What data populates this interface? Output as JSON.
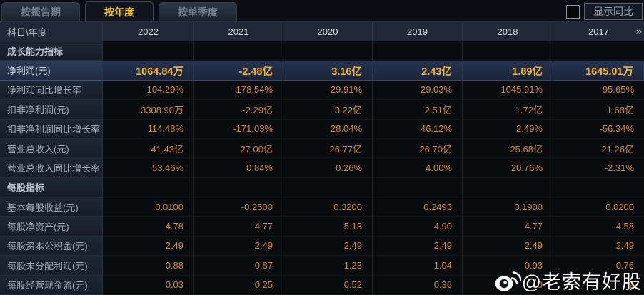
{
  "tabs": [
    {
      "label": "按报告期",
      "active": false
    },
    {
      "label": "按年度",
      "active": true
    },
    {
      "label": "按单季度",
      "active": false
    }
  ],
  "controls": {
    "show_yoy_label": "显示同比"
  },
  "table": {
    "corner_header": "科目\\年度",
    "year_columns": [
      "2022",
      "2021",
      "2020",
      "2019",
      "2018",
      "2017"
    ],
    "more_years_icon": "»",
    "rows": [
      {
        "label": "成长能力指标",
        "type": "section",
        "values": [
          "",
          "",
          "",
          "",
          "",
          ""
        ]
      },
      {
        "label": "净利润(元)",
        "type": "highlight",
        "values": [
          "1064.84万",
          "-2.48亿",
          "3.16亿",
          "2.43亿",
          "1.89亿",
          "1645.01万"
        ]
      },
      {
        "label": "净利润同比增长率",
        "type": "data",
        "values": [
          "104.29%",
          "-178.54%",
          "29.91%",
          "29.03%",
          "1045.91%",
          "-95.65%"
        ]
      },
      {
        "label": "扣非净利润(元)",
        "type": "data",
        "values": [
          "3308.90万",
          "-2.29亿",
          "3.22亿",
          "2.51亿",
          "1.72亿",
          "1.68亿"
        ]
      },
      {
        "label": "扣非净利润同比增长率",
        "type": "data",
        "values": [
          "114.48%",
          "-171.03%",
          "28.04%",
          "46.12%",
          "2.49%",
          "-56.34%"
        ]
      },
      {
        "label": "营业总收入(元)",
        "type": "data",
        "values": [
          "41.43亿",
          "27.00亿",
          "26.77亿",
          "26.70亿",
          "25.68亿",
          "21.26亿"
        ]
      },
      {
        "label": "营业总收入同比增长率",
        "type": "data",
        "values": [
          "53.46%",
          "0.84%",
          "0.26%",
          "4.00%",
          "20.76%",
          "-2.31%"
        ]
      },
      {
        "label": "每股指标",
        "type": "section",
        "values": [
          "",
          "",
          "",
          "",
          "",
          ""
        ]
      },
      {
        "label": "基本每股收益(元)",
        "type": "data",
        "values": [
          "0.0100",
          "-0.2500",
          "0.3200",
          "0.2493",
          "0.1900",
          "0.0200"
        ]
      },
      {
        "label": "每股净资产(元)",
        "type": "data",
        "values": [
          "4.78",
          "4.77",
          "5.13",
          "4.90",
          "4.77",
          "4.58"
        ]
      },
      {
        "label": "每股资本公积金(元)",
        "type": "data",
        "values": [
          "2.49",
          "2.49",
          "2.49",
          "2.49",
          "2.49",
          "2.49"
        ]
      },
      {
        "label": "每股未分配利润(元)",
        "type": "data",
        "values": [
          "0.88",
          "0.87",
          "1.23",
          "1.04",
          "0.93",
          "0.76"
        ]
      },
      {
        "label": "每股经营现金流(元)",
        "type": "data",
        "values": [
          "0.03",
          "0.25",
          "0.52",
          "0.36",
          "0",
          "9"
        ]
      }
    ]
  },
  "watermark": {
    "text": "@老索有好股"
  },
  "colors": {
    "background": "#0a0d13",
    "active_tab_text": "#f6c51d",
    "value_orange": "#d38c3c",
    "highlight_gold": "#f2b13c",
    "header_bg": "#202837",
    "highlight_row_bg": "#253450"
  }
}
